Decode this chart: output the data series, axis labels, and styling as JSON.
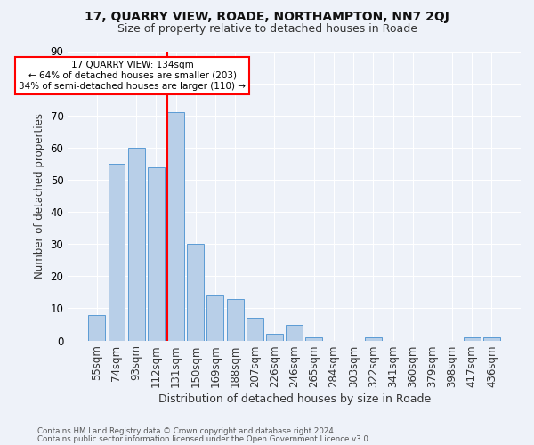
{
  "title1": "17, QUARRY VIEW, ROADE, NORTHAMPTON, NN7 2QJ",
  "title2": "Size of property relative to detached houses in Roade",
  "xlabel": "Distribution of detached houses by size in Roade",
  "ylabel": "Number of detached properties",
  "categories": [
    "55sqm",
    "74sqm",
    "93sqm",
    "112sqm",
    "131sqm",
    "150sqm",
    "169sqm",
    "188sqm",
    "207sqm",
    "226sqm",
    "246sqm",
    "265sqm",
    "284sqm",
    "303sqm",
    "322sqm",
    "341sqm",
    "360sqm",
    "379sqm",
    "398sqm",
    "417sqm",
    "436sqm"
  ],
  "values": [
    8,
    55,
    60,
    54,
    71,
    30,
    14,
    13,
    7,
    2,
    5,
    1,
    0,
    0,
    1,
    0,
    0,
    0,
    0,
    1,
    1
  ],
  "bar_color": "#b8cfe8",
  "bar_edge_color": "#5b9bd5",
  "vline_color": "red",
  "annotation_title": "17 QUARRY VIEW: 134sqm",
  "annotation_line1": "← 64% of detached houses are smaller (203)",
  "annotation_line2": "34% of semi-detached houses are larger (110) →",
  "annotation_box_color": "white",
  "annotation_box_edge": "red",
  "ylim": [
    0,
    90
  ],
  "yticks": [
    0,
    10,
    20,
    30,
    40,
    50,
    60,
    70,
    80,
    90
  ],
  "footer1": "Contains HM Land Registry data © Crown copyright and database right 2024.",
  "footer2": "Contains public sector information licensed under the Open Government Licence v3.0.",
  "bg_color": "#eef2f9"
}
